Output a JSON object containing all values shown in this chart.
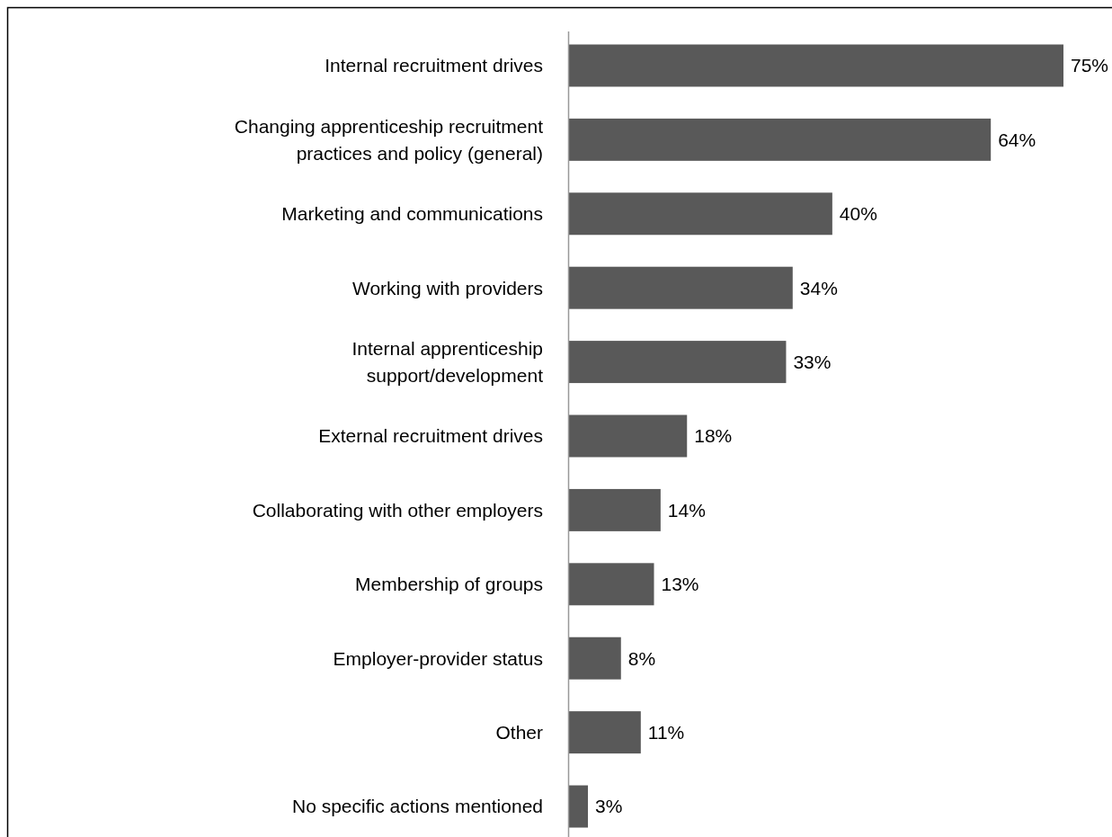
{
  "chart_data": {
    "type": "bar",
    "orientation": "horizontal",
    "color": "#595959",
    "value_labels": [
      "75%",
      "64%",
      "40%",
      "34%",
      "33%",
      "18%",
      "14%",
      "13%",
      "8%",
      "11%",
      "3%"
    ],
    "categories": [
      "Internal recruitment drives",
      "Changing apprenticeship recruitment practices and policy (general)",
      "Marketing and communications",
      "Working with providers",
      "Internal apprenticeship support/development",
      "External recruitment drives",
      "Collaborating with other employers",
      "Membership of groups",
      "Employer-provider status",
      "Other",
      "No specific actions mentioned"
    ],
    "values": [
      75,
      64,
      40,
      34,
      33,
      18,
      14,
      13,
      8,
      11,
      3
    ]
  }
}
